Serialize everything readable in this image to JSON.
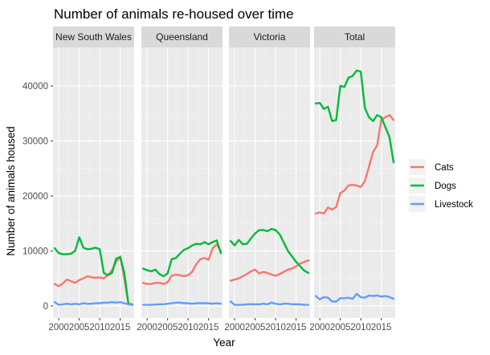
{
  "chart_data": {
    "type": "line",
    "title": "Number of animals re-housed over time",
    "xlabel": "Year",
    "ylabel": "Number of animals housed",
    "xlim": [
      1998.6,
      2018.4
    ],
    "ylim": [
      -2200,
      47000
    ],
    "x_ticks": [
      2000,
      2005,
      2010,
      2015
    ],
    "x_tick_labels": [
      "2000",
      "2005",
      "2010",
      "2015"
    ],
    "y_ticks": [
      0,
      10000,
      20000,
      30000,
      40000
    ],
    "y_tick_labels": [
      "0",
      "10000",
      "20000",
      "30000",
      "40000"
    ],
    "grid": true,
    "legend_position": "right",
    "x": [
      1999,
      2000,
      2001,
      2002,
      2003,
      2004,
      2005,
      2006,
      2007,
      2008,
      2009,
      2010,
      2011,
      2012,
      2013,
      2014,
      2015,
      2016,
      2017,
      2018
    ],
    "series_styles": [
      {
        "name": "Cats",
        "color": "#F8766D"
      },
      {
        "name": "Dogs",
        "color": "#00BA38"
      },
      {
        "name": "Livestock",
        "color": "#619CFF"
      }
    ],
    "panels": [
      {
        "name": "New South Wales",
        "series": [
          {
            "name": "Cats",
            "values": [
              4000,
              3600,
              4100,
              4800,
              4500,
              4200,
              4700,
              5000,
              5400,
              5200,
              5100,
              5200,
              5000,
              5600,
              6500,
              8000,
              9000,
              5000,
              500,
              300
            ]
          },
          {
            "name": "Dogs",
            "values": [
              10500,
              9600,
              9400,
              9400,
              9500,
              10000,
              12500,
              10600,
              10300,
              10400,
              10600,
              10300,
              6000,
              5600,
              6000,
              8600,
              8900,
              6000,
              300,
              200
            ]
          },
          {
            "name": "Livestock",
            "values": [
              700,
              200,
              300,
              400,
              300,
              400,
              300,
              500,
              400,
              400,
              500,
              500,
              600,
              600,
              700,
              600,
              700,
              500,
              300,
              200
            ]
          }
        ]
      },
      {
        "name": "Queensland",
        "series": [
          {
            "name": "Cats",
            "values": [
              4200,
              4000,
              4000,
              4200,
              4200,
              4000,
              4300,
              5500,
              5700,
              5600,
              5400,
              5600,
              6200,
              7600,
              8500,
              8700,
              8400,
              10500,
              11200,
              9900
            ]
          },
          {
            "name": "Dogs",
            "values": [
              6800,
              6500,
              6300,
              6600,
              5800,
              5400,
              5900,
              8500,
              8700,
              9500,
              10200,
              10500,
              11000,
              11300,
              11200,
              11600,
              11200,
              11600,
              11900,
              9600
            ]
          },
          {
            "name": "Livestock",
            "values": [
              200,
              200,
              200,
              250,
              300,
              300,
              400,
              500,
              600,
              600,
              500,
              500,
              400,
              500,
              500,
              500,
              500,
              400,
              500,
              400
            ]
          }
        ]
      },
      {
        "name": "Victoria",
        "series": [
          {
            "name": "Cats",
            "values": [
              4600,
              4800,
              5000,
              5400,
              5800,
              6300,
              6600,
              5900,
              6200,
              6000,
              5700,
              5500,
              5800,
              6200,
              6600,
              6800,
              7200,
              7700,
              8000,
              8300
            ]
          },
          {
            "name": "Dogs",
            "values": [
              11800,
              11000,
              12000,
              11200,
              11300,
              12300,
              13200,
              13800,
              13800,
              13600,
              14000,
              13800,
              13000,
              11500,
              10000,
              9000,
              8000,
              7200,
              6400,
              6000
            ]
          },
          {
            "name": "Livestock",
            "values": [
              800,
              200,
              200,
              200,
              300,
              300,
              300,
              300,
              400,
              300,
              600,
              400,
              300,
              400,
              400,
              300,
              300,
              300,
              200,
              200
            ]
          }
        ]
      },
      {
        "name": "Total",
        "series": [
          {
            "name": "Cats",
            "values": [
              16800,
              17000,
              16800,
              17900,
              17500,
              18000,
              20500,
              21000,
              21900,
              22000,
              21900,
              21600,
              22700,
              25300,
              28000,
              29200,
              33800,
              34300,
              34700,
              33800
            ]
          },
          {
            "name": "Dogs",
            "values": [
              36800,
              36900,
              35800,
              36200,
              33600,
              33800,
              40000,
              39800,
              41500,
              41800,
              42800,
              42600,
              36000,
              34300,
              33600,
              34700,
              34300,
              32500,
              30700,
              26100
            ]
          },
          {
            "name": "Livestock",
            "values": [
              1800,
              1200,
              1600,
              1500,
              800,
              800,
              1400,
              1400,
              1500,
              1300,
              2200,
              1600,
              1500,
              1900,
              1800,
              1900,
              1700,
              1800,
              1600,
              1300
            ]
          }
        ]
      }
    ]
  }
}
